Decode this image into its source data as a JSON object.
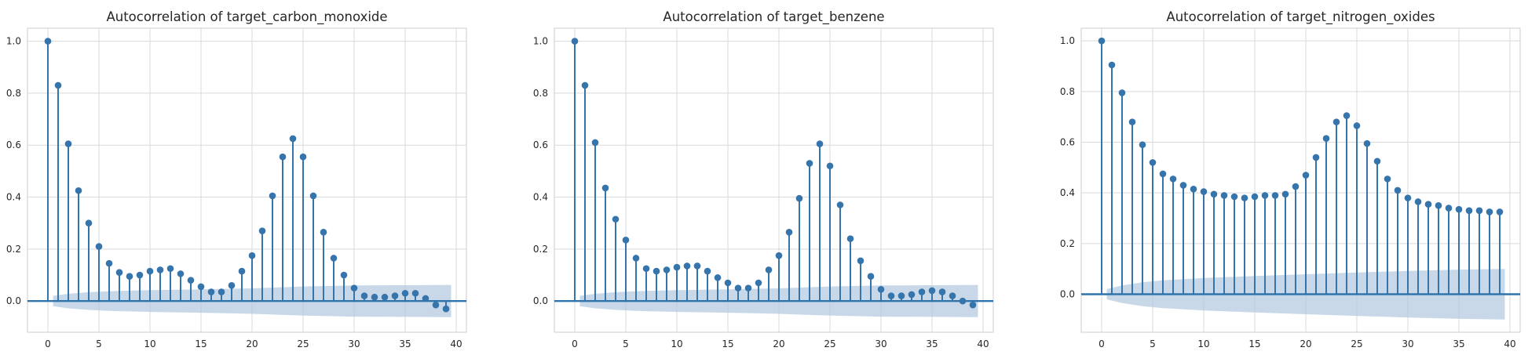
{
  "chart_data": [
    {
      "type": "stem",
      "title": "Autocorrelation of target_carbon_monoxide",
      "xlim": [
        -2,
        41
      ],
      "ylim": [
        -0.12,
        1.05
      ],
      "xticks": [
        0,
        5,
        10,
        15,
        20,
        25,
        30,
        35,
        40
      ],
      "xtick_labels": [
        "0",
        "5",
        "10",
        "15",
        "20",
        "25",
        "30",
        "35",
        "40"
      ],
      "yticks": [
        0,
        0.2,
        0.4,
        0.6,
        0.8,
        1.0
      ],
      "ytick_labels": [
        "0.0",
        "0.2",
        "0.4",
        "0.6",
        "0.8",
        "1.0"
      ],
      "grid": true,
      "lags": [
        0,
        1,
        2,
        3,
        4,
        5,
        6,
        7,
        8,
        9,
        10,
        11,
        12,
        13,
        14,
        15,
        16,
        17,
        18,
        19,
        20,
        21,
        22,
        23,
        24,
        25,
        26,
        27,
        28,
        29,
        30,
        31,
        32,
        33,
        34,
        35,
        36,
        37,
        38,
        39
      ],
      "values": [
        1.0,
        0.83,
        0.605,
        0.425,
        0.3,
        0.21,
        0.145,
        0.11,
        0.095,
        0.1,
        0.115,
        0.12,
        0.125,
        0.105,
        0.08,
        0.055,
        0.035,
        0.035,
        0.06,
        0.115,
        0.175,
        0.27,
        0.405,
        0.555,
        0.625,
        0.555,
        0.405,
        0.265,
        0.165,
        0.1,
        0.05,
        0.02,
        0.015,
        0.015,
        0.02,
        0.03,
        0.03,
        0.01,
        -0.015,
        -0.03
      ],
      "confidence_band": {
        "lags": [
          0.5,
          2,
          4,
          6,
          10,
          15,
          20,
          25,
          30,
          35,
          39.5
        ],
        "half_width": [
          0.02,
          0.028,
          0.034,
          0.038,
          0.042,
          0.045,
          0.049,
          0.056,
          0.06,
          0.061,
          0.062
        ]
      }
    },
    {
      "type": "stem",
      "title": "Autocorrelation of target_benzene",
      "xlim": [
        -2,
        41
      ],
      "ylim": [
        -0.12,
        1.05
      ],
      "xticks": [
        0,
        5,
        10,
        15,
        20,
        25,
        30,
        35,
        40
      ],
      "xtick_labels": [
        "0",
        "5",
        "10",
        "15",
        "20",
        "25",
        "30",
        "35",
        "40"
      ],
      "yticks": [
        0,
        0.2,
        0.4,
        0.6,
        0.8,
        1.0
      ],
      "ytick_labels": [
        "0.0",
        "0.2",
        "0.4",
        "0.6",
        "0.8",
        "1.0"
      ],
      "grid": true,
      "lags": [
        0,
        1,
        2,
        3,
        4,
        5,
        6,
        7,
        8,
        9,
        10,
        11,
        12,
        13,
        14,
        15,
        16,
        17,
        18,
        19,
        20,
        21,
        22,
        23,
        24,
        25,
        26,
        27,
        28,
        29,
        30,
        31,
        32,
        33,
        34,
        35,
        36,
        37,
        38,
        39
      ],
      "values": [
        1.0,
        0.83,
        0.61,
        0.435,
        0.315,
        0.235,
        0.165,
        0.125,
        0.115,
        0.12,
        0.13,
        0.135,
        0.135,
        0.115,
        0.09,
        0.07,
        0.05,
        0.05,
        0.07,
        0.12,
        0.175,
        0.265,
        0.395,
        0.53,
        0.605,
        0.52,
        0.37,
        0.24,
        0.155,
        0.095,
        0.045,
        0.02,
        0.02,
        0.025,
        0.035,
        0.04,
        0.035,
        0.02,
        0.0,
        -0.015
      ],
      "confidence_band": {
        "lags": [
          0.5,
          2,
          4,
          6,
          10,
          15,
          20,
          25,
          30,
          35,
          39.5
        ],
        "half_width": [
          0.02,
          0.028,
          0.034,
          0.038,
          0.042,
          0.045,
          0.049,
          0.056,
          0.06,
          0.061,
          0.062
        ]
      }
    },
    {
      "type": "stem",
      "title": "Autocorrelation of target_nitrogen_oxides",
      "xlim": [
        -2,
        41
      ],
      "ylim": [
        -0.15,
        1.05
      ],
      "xticks": [
        0,
        5,
        10,
        15,
        20,
        25,
        30,
        35,
        40
      ],
      "xtick_labels": [
        "0",
        "5",
        "10",
        "15",
        "20",
        "25",
        "30",
        "35",
        "40"
      ],
      "yticks": [
        0,
        0.2,
        0.4,
        0.6,
        0.8,
        1.0
      ],
      "ytick_labels": [
        "0.0",
        "0.2",
        "0.4",
        "0.6",
        "0.8",
        "1.0"
      ],
      "grid": true,
      "lags": [
        0,
        1,
        2,
        3,
        4,
        5,
        6,
        7,
        8,
        9,
        10,
        11,
        12,
        13,
        14,
        15,
        16,
        17,
        18,
        19,
        20,
        21,
        22,
        23,
        24,
        25,
        26,
        27,
        28,
        29,
        30,
        31,
        32,
        33,
        34,
        35,
        36,
        37,
        38,
        39
      ],
      "values": [
        1.0,
        0.905,
        0.795,
        0.68,
        0.59,
        0.52,
        0.475,
        0.455,
        0.43,
        0.415,
        0.405,
        0.395,
        0.39,
        0.385,
        0.38,
        0.385,
        0.39,
        0.39,
        0.395,
        0.425,
        0.47,
        0.54,
        0.615,
        0.68,
        0.705,
        0.665,
        0.595,
        0.525,
        0.455,
        0.41,
        0.38,
        0.365,
        0.355,
        0.35,
        0.34,
        0.335,
        0.33,
        0.33,
        0.325,
        0.325
      ],
      "confidence_band": {
        "lags": [
          0.5,
          2,
          4,
          6,
          10,
          15,
          20,
          25,
          30,
          35,
          39.5
        ],
        "half_width": [
          0.02,
          0.035,
          0.047,
          0.055,
          0.064,
          0.072,
          0.079,
          0.086,
          0.092,
          0.097,
          0.1
        ]
      }
    }
  ]
}
